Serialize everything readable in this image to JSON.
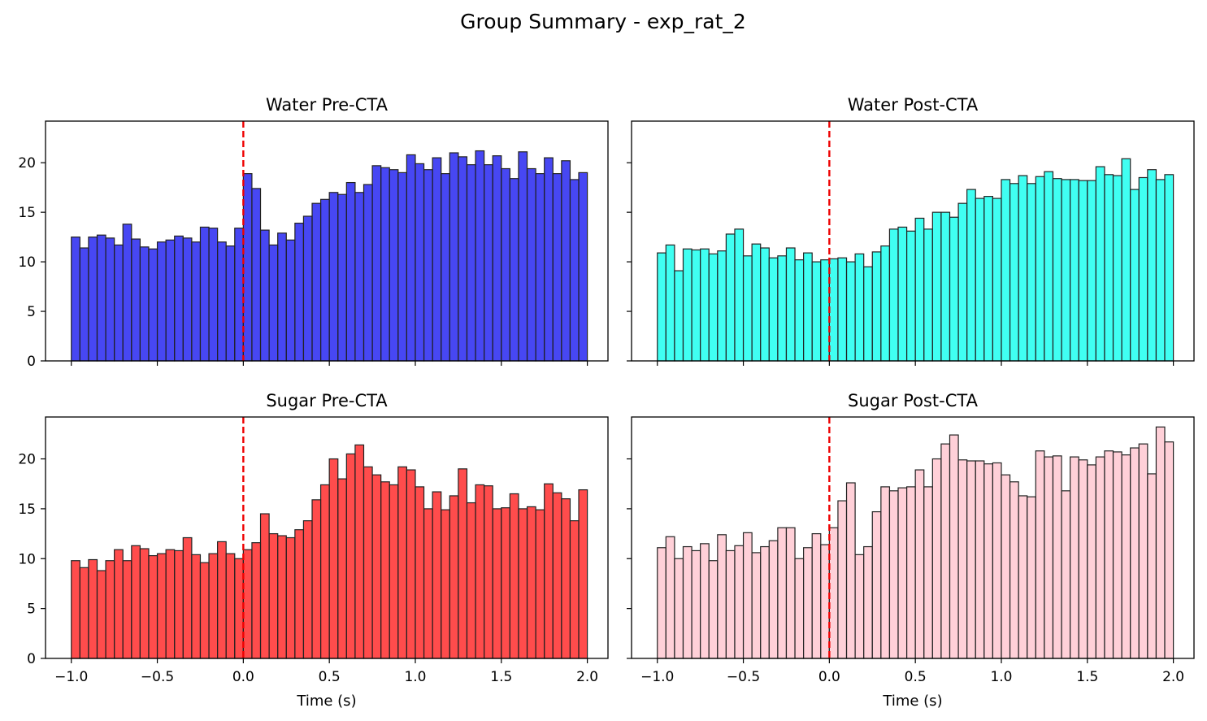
{
  "figure": {
    "title": "Group Summary - exp_rat_2",
    "x_tick_labels": [
      "−1.0",
      "−0.5",
      "0.0",
      "0.5",
      "1.0",
      "1.5",
      "2.0"
    ],
    "y_tick_labels": [
      "0",
      "5",
      "10",
      "15",
      "20"
    ]
  },
  "chart_data": [
    {
      "type": "bar",
      "title": "Water Pre-CTA",
      "xlabel": "",
      "ylabel": "",
      "bar_color": "#0000ee",
      "bar_opacity": 0.72,
      "edge_color": "#222222",
      "event_line": {
        "x": 0.0,
        "color": "#ee0000",
        "style": "dashed"
      },
      "xlim": [
        -1.15,
        2.12
      ],
      "ylim": [
        0,
        24.2
      ],
      "bin_start": -1.0,
      "bin_width": 0.05,
      "xticks": [
        -1.0,
        -0.5,
        0.0,
        0.5,
        1.0,
        1.5,
        2.0
      ],
      "yticks": [
        0,
        5,
        10,
        15,
        20
      ],
      "show_xtick_labels": false,
      "show_ytick_labels": true,
      "values": [
        12.5,
        11.4,
        12.5,
        12.7,
        12.4,
        11.7,
        13.8,
        12.3,
        11.5,
        11.3,
        12.0,
        12.2,
        12.6,
        12.4,
        12.0,
        13.5,
        13.4,
        12.0,
        11.6,
        13.4,
        18.9,
        17.4,
        13.2,
        11.7,
        12.9,
        12.2,
        13.9,
        14.6,
        15.9,
        16.3,
        17.0,
        16.8,
        18.0,
        17.0,
        17.8,
        19.7,
        19.5,
        19.3,
        19.0,
        20.8,
        19.9,
        19.3,
        20.5,
        18.9,
        21.0,
        20.6,
        19.8,
        21.2,
        19.8,
        20.7,
        19.4,
        18.4,
        21.1,
        19.4,
        18.9,
        20.5,
        18.9,
        20.2,
        18.3,
        19.0
      ]
    },
    {
      "type": "bar",
      "title": "Water Post-CTA",
      "xlabel": "",
      "ylabel": "",
      "bar_color": "#00ffee",
      "bar_opacity": 0.75,
      "edge_color": "#222222",
      "event_line": {
        "x": 0.0,
        "color": "#ee0000",
        "style": "dashed"
      },
      "xlim": [
        -1.15,
        2.12
      ],
      "ylim": [
        0,
        24.2
      ],
      "bin_start": -1.0,
      "bin_width": 0.05,
      "xticks": [
        -1.0,
        -0.5,
        0.0,
        0.5,
        1.0,
        1.5,
        2.0
      ],
      "yticks": [
        0,
        5,
        10,
        15,
        20
      ],
      "show_xtick_labels": false,
      "show_ytick_labels": false,
      "values": [
        10.9,
        11.7,
        9.1,
        11.3,
        11.2,
        11.3,
        10.8,
        11.1,
        12.8,
        13.3,
        10.6,
        11.8,
        11.4,
        10.4,
        10.6,
        11.4,
        10.2,
        10.9,
        10.0,
        10.2,
        10.3,
        10.4,
        10.0,
        10.8,
        9.5,
        11.0,
        11.6,
        13.3,
        13.5,
        13.1,
        14.4,
        13.3,
        15.0,
        15.0,
        14.5,
        15.9,
        17.3,
        16.4,
        16.6,
        16.4,
        18.3,
        17.9,
        18.7,
        17.9,
        18.6,
        19.1,
        18.4,
        18.3,
        18.3,
        18.2,
        18.2,
        19.6,
        18.8,
        18.7,
        20.4,
        17.3,
        18.5,
        19.3,
        18.3,
        18.8
      ]
    },
    {
      "type": "bar",
      "title": "Sugar Pre-CTA",
      "xlabel": "Time (s)",
      "ylabel": "",
      "bar_color": "#ff0000",
      "bar_opacity": 0.7,
      "edge_color": "#222222",
      "event_line": {
        "x": 0.0,
        "color": "#ee0000",
        "style": "dashed"
      },
      "xlim": [
        -1.15,
        2.12
      ],
      "ylim": [
        0,
        24.2
      ],
      "bin_start": -1.0,
      "bin_width": 0.05,
      "xticks": [
        -1.0,
        -0.5,
        0.0,
        0.5,
        1.0,
        1.5,
        2.0
      ],
      "yticks": [
        0,
        5,
        10,
        15,
        20
      ],
      "show_xtick_labels": true,
      "show_ytick_labels": true,
      "values": [
        9.8,
        9.1,
        9.9,
        8.8,
        9.8,
        10.9,
        9.8,
        11.3,
        11.0,
        10.3,
        10.5,
        10.9,
        10.8,
        12.1,
        10.4,
        9.6,
        10.5,
        11.7,
        10.5,
        10.0,
        10.9,
        11.6,
        14.5,
        12.5,
        12.3,
        12.1,
        12.9,
        13.8,
        15.9,
        17.4,
        20.0,
        18.0,
        20.5,
        21.4,
        19.2,
        18.4,
        17.7,
        17.4,
        19.2,
        18.9,
        17.2,
        15.0,
        16.7,
        14.9,
        16.3,
        19.0,
        15.6,
        17.4,
        17.3,
        15.0,
        15.1,
        16.5,
        15.0,
        15.2,
        14.9,
        17.5,
        16.6,
        16.0,
        13.8,
        16.9
      ]
    },
    {
      "type": "bar",
      "title": "Sugar Post-CTA",
      "xlabel": "Time (s)",
      "ylabel": "",
      "bar_color": "#ffc0cb",
      "bar_opacity": 0.75,
      "edge_color": "#222222",
      "event_line": {
        "x": 0.0,
        "color": "#ee0000",
        "style": "dashed"
      },
      "xlim": [
        -1.15,
        2.12
      ],
      "ylim": [
        0,
        24.2
      ],
      "bin_start": -1.0,
      "bin_width": 0.05,
      "xticks": [
        -1.0,
        -0.5,
        0.0,
        0.5,
        1.0,
        1.5,
        2.0
      ],
      "yticks": [
        0,
        5,
        10,
        15,
        20
      ],
      "show_xtick_labels": true,
      "show_ytick_labels": false,
      "values": [
        11.1,
        12.2,
        10.0,
        11.2,
        10.8,
        11.5,
        9.8,
        12.4,
        10.8,
        11.3,
        12.6,
        10.6,
        11.2,
        11.8,
        13.1,
        13.1,
        10.0,
        11.1,
        12.5,
        11.4,
        13.1,
        15.8,
        17.6,
        10.4,
        11.2,
        14.7,
        17.2,
        16.8,
        17.1,
        17.2,
        18.9,
        17.2,
        20.0,
        21.5,
        22.4,
        19.9,
        19.8,
        19.8,
        19.5,
        19.6,
        18.4,
        17.7,
        16.3,
        16.2,
        20.8,
        20.2,
        20.3,
        16.8,
        20.2,
        19.9,
        19.4,
        20.2,
        20.8,
        20.7,
        20.4,
        21.1,
        21.5,
        18.5,
        23.2,
        21.7
      ]
    }
  ]
}
